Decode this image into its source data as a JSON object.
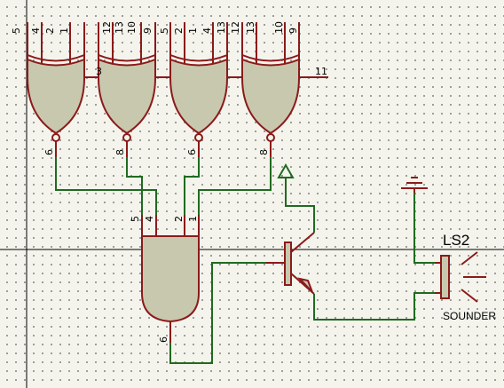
{
  "colors": {
    "background": "#f4f4ec",
    "grid_dots": "#8c8c8c",
    "gate_body": "#c8c8ae",
    "gate_outline": "#8b1a1a",
    "wire": "#1f6b1f"
  },
  "components": {
    "xor_gates": [
      {
        "inputs": [
          "5",
          "4"
        ],
        "output": "6"
      },
      {
        "inputs": [
          "12",
          "13"
        ],
        "output": "8"
      },
      {
        "inputs": [
          "2",
          "1"
        ],
        "output": "6"
      },
      {
        "inputs": [
          "10",
          "9"
        ],
        "output": "8"
      }
    ],
    "tick_labels": [
      "3",
      "11"
    ],
    "and_gate": {
      "inputs": [
        "5",
        "4",
        "2",
        "1"
      ],
      "output": "6"
    },
    "sounder": {
      "reference": "LS2",
      "value": "SOUNDER"
    }
  }
}
